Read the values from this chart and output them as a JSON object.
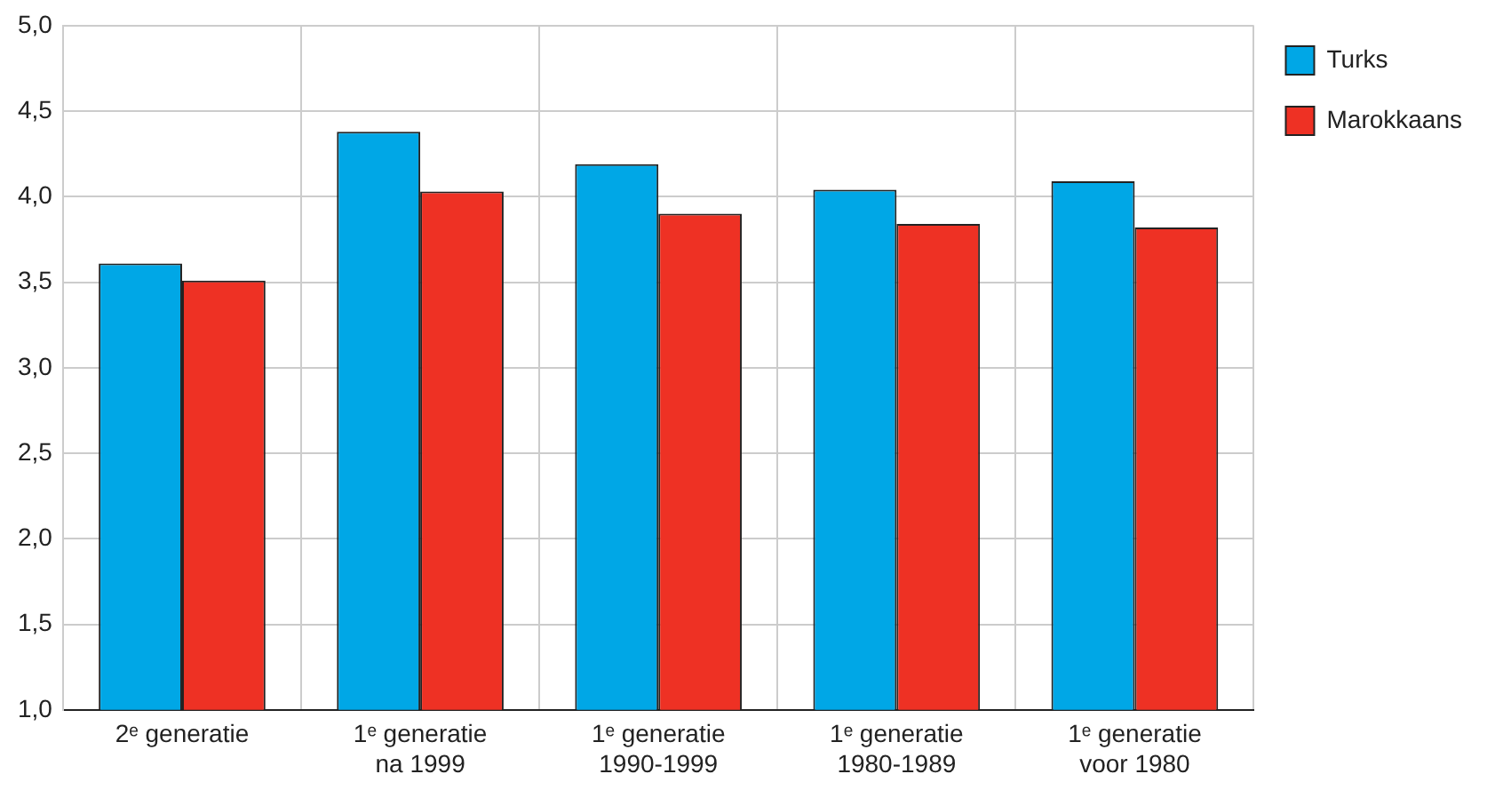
{
  "chart_data": {
    "type": "bar",
    "categories": [
      "2ᵉ generatie",
      "1ᵉ generatie\nna 1999",
      "1ᵉ generatie\n1990-1999",
      "1ᵉ generatie\n1980-1989",
      "1ᵉ generatie\nvoor 1980"
    ],
    "series": [
      {
        "name": "Turks",
        "color": "#00a7e6",
        "values": [
          3.61,
          4.38,
          4.19,
          4.04,
          4.09
        ]
      },
      {
        "name": "Marokkaans",
        "color": "#ee3124",
        "values": [
          3.51,
          4.03,
          3.9,
          3.84,
          3.82
        ]
      }
    ],
    "ylim": [
      1,
      5
    ],
    "yticks": [
      {
        "value": 1,
        "label": "1,0"
      },
      {
        "value": 1.5,
        "label": "1,5"
      },
      {
        "value": 2,
        "label": "2,0"
      },
      {
        "value": 2.5,
        "label": "2,5"
      },
      {
        "value": 3,
        "label": "3,0"
      },
      {
        "value": 3.5,
        "label": "3,5"
      },
      {
        "value": 4,
        "label": "4,0"
      },
      {
        "value": 4.5,
        "label": "4,5"
      },
      {
        "value": 5,
        "label": "5,0"
      }
    ],
    "grid": true,
    "legend": "top right"
  }
}
